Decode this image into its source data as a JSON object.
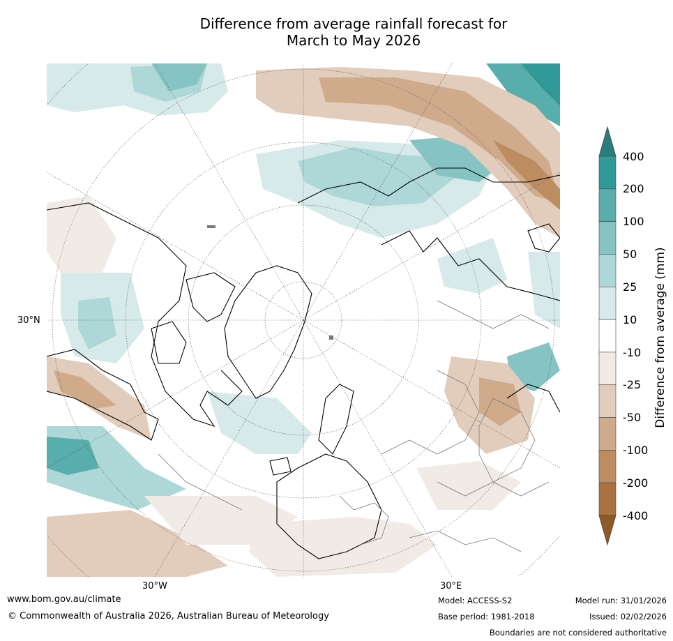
{
  "title": {
    "line1": "Difference from average rainfall forecast for",
    "line2": "March to May 2026"
  },
  "map": {
    "projection": "north-polar stereographic",
    "lat_label": "30°N",
    "lon_labels": [
      "30°W",
      "30°E"
    ],
    "anomaly_color_neutral": "#ffffff"
  },
  "colorbar": {
    "title": "Difference from average (mm)",
    "ticks": [
      "400",
      "200",
      "100",
      "50",
      "25",
      "10",
      "-10",
      "-25",
      "-50",
      "-100",
      "-200",
      "-400"
    ],
    "bins": [
      {
        "range": ">400",
        "color": "#2a7e7b"
      },
      {
        "range": "200 to 400",
        "color": "#319a98"
      },
      {
        "range": "100 to 200",
        "color": "#58aeac"
      },
      {
        "range": "50 to 100",
        "color": "#85c4c3"
      },
      {
        "range": "25 to 50",
        "color": "#aed8d7"
      },
      {
        "range": "10 to 25",
        "color": "#d6eae9"
      },
      {
        "range": "-10 to 10",
        "color": "#ffffff"
      },
      {
        "range": "-25 to -10",
        "color": "#f1ebe5"
      },
      {
        "range": "-50 to -25",
        "color": "#e2ccbb"
      },
      {
        "range": "-100 to -50",
        "color": "#cfab8c"
      },
      {
        "range": "-200 to -100",
        "color": "#bd8d62"
      },
      {
        "range": "-400 to -200",
        "color": "#ab7241"
      },
      {
        "range": "<-400",
        "color": "#8e5a24"
      }
    ]
  },
  "footer": {
    "website": "www.bom.gov.au/climate",
    "copyright": "© Commonwealth of Australia 2026, Australian Bureau of Meteorology",
    "model": "Model: ACCESS-S2",
    "base_period": "Base period: 1981-2018",
    "model_run": "Model run: 31/01/2026",
    "issued": "Issued: 02/02/2026",
    "disclaimer": "Boundaries are not considered authoritative"
  }
}
